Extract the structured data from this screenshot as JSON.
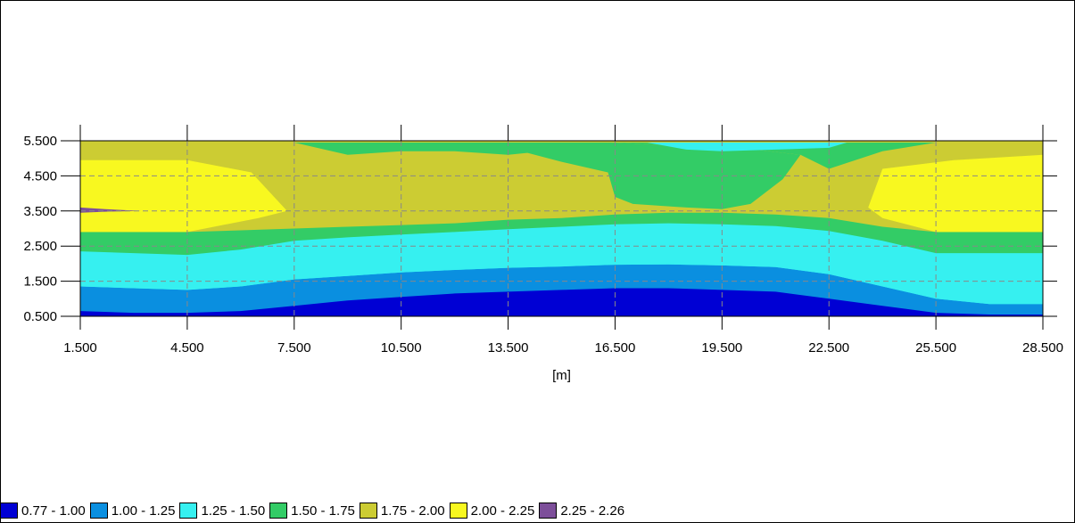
{
  "chart_data": {
    "type": "heatmap",
    "xlabel": "[m]",
    "ylabel": "",
    "xlim": [
      1.5,
      28.5
    ],
    "ylim": [
      0.5,
      5.5
    ],
    "x_ticks": [
      "1.500",
      "4.500",
      "7.500",
      "10.500",
      "13.500",
      "16.500",
      "19.500",
      "22.500",
      "25.500",
      "28.500"
    ],
    "y_ticks": [
      "0.500",
      "1.500",
      "2.500",
      "3.500",
      "4.500",
      "5.500"
    ],
    "grid": true,
    "legend_placement": "bottom",
    "contour_x": [
      1.5,
      3,
      4.5,
      6,
      7.5,
      9,
      10.5,
      12,
      13.5,
      15,
      16.5,
      18,
      19.5,
      21,
      22.5,
      24,
      25.5,
      27,
      28.5
    ],
    "contour_boundaries": [
      [
        0.65,
        0.6,
        0.6,
        0.65,
        0.8,
        0.95,
        1.05,
        1.15,
        1.2,
        1.25,
        1.3,
        1.3,
        1.25,
        1.2,
        1.0,
        0.8,
        0.6,
        0.55,
        0.55
      ],
      [
        1.35,
        1.3,
        1.25,
        1.35,
        1.55,
        1.65,
        1.75,
        1.82,
        1.88,
        1.92,
        1.97,
        1.98,
        1.95,
        1.9,
        1.7,
        1.35,
        1.0,
        0.85,
        0.85
      ],
      [
        1.85,
        1.8,
        1.75,
        1.9,
        2.2,
        2.3,
        2.4,
        2.47,
        2.53,
        2.6,
        2.66,
        2.68,
        2.65,
        2.6,
        2.4,
        2.1,
        1.75,
        1.65,
        1.65
      ],
      [
        2.35,
        2.3,
        2.25,
        2.4,
        2.65,
        2.75,
        2.83,
        2.9,
        2.98,
        3.05,
        3.12,
        3.15,
        3.12,
        3.07,
        2.93,
        2.65,
        2.3,
        2.3,
        2.3
      ]
    ],
    "green_top_x": [
      1.5,
      3,
      4.5,
      6,
      7.5,
      9,
      10.5,
      12,
      13.5,
      15,
      16.5,
      18,
      19.5,
      21,
      22.5,
      24,
      25.5,
      27,
      28.5
    ],
    "green_top_y": [
      2.9,
      2.9,
      2.9,
      2.95,
      3.0,
      3.05,
      3.1,
      3.15,
      3.25,
      3.3,
      3.4,
      3.45,
      3.45,
      3.4,
      3.3,
      3.05,
      2.9,
      2.9,
      2.9
    ],
    "yellow_left": [
      [
        1.5,
        5.45
      ],
      [
        3,
        5.45
      ],
      [
        4.5,
        5.45
      ],
      [
        6,
        5.2
      ],
      [
        7.5,
        4.95
      ],
      [
        1.5,
        4.95
      ]
    ],
    "yellow_left_inner": [
      [
        1.5,
        4.95
      ],
      [
        4.5,
        4.95
      ],
      [
        6.3,
        4.6
      ],
      [
        7.3,
        3.5
      ],
      [
        6.5,
        3.3
      ],
      [
        4.5,
        2.9
      ],
      [
        1.5,
        2.9
      ]
    ],
    "yellow_right_inner": [
      [
        28.5,
        5.1
      ],
      [
        26,
        4.95
      ],
      [
        24,
        4.7
      ],
      [
        23.6,
        3.6
      ],
      [
        24,
        3.3
      ],
      [
        25.5,
        2.9
      ],
      [
        28.5,
        2.9
      ]
    ],
    "green_center": [
      [
        16.3,
        4.6
      ],
      [
        16.5,
        3.9
      ],
      [
        17,
        3.7
      ],
      [
        18.5,
        3.6
      ],
      [
        19.5,
        3.55
      ],
      [
        20.3,
        3.7
      ],
      [
        21.2,
        4.4
      ],
      [
        21.7,
        5.1
      ],
      [
        20,
        5.3
      ],
      [
        18.5,
        5.35
      ],
      [
        16.5,
        5.45
      ],
      [
        14.5,
        5.3
      ],
      [
        13.5,
        5.3
      ],
      [
        15,
        4.9
      ],
      [
        16.3,
        4.6
      ]
    ],
    "green_top_band": [
      [
        7.5,
        5.45
      ],
      [
        12,
        5.45
      ],
      [
        24,
        5.45
      ],
      [
        25.5,
        5.45
      ],
      [
        24,
        5.2
      ],
      [
        22.5,
        4.7
      ],
      [
        21.7,
        5.1
      ],
      [
        20,
        5.3
      ],
      [
        18.5,
        5.35
      ],
      [
        16.5,
        5.45
      ],
      [
        14.5,
        5.2
      ],
      [
        13.5,
        5.1
      ],
      [
        12,
        5.2
      ],
      [
        10.5,
        5.2
      ],
      [
        9,
        5.1
      ]
    ],
    "cyan_top": [
      [
        17.4,
        5.45
      ],
      [
        23,
        5.45
      ],
      [
        22.5,
        5.3
      ],
      [
        21,
        5.25
      ],
      [
        19.5,
        5.2
      ],
      [
        18.5,
        5.25
      ]
    ],
    "purple_spot": [
      [
        1.5,
        3.6
      ],
      [
        2.2,
        3.55
      ],
      [
        3.2,
        3.5
      ],
      [
        2.2,
        3.48
      ],
      [
        1.5,
        3.45
      ]
    ],
    "legend": [
      {
        "label": "0.77 - 1.00",
        "color": "#0000d4"
      },
      {
        "label": "1.00 - 1.25",
        "color": "#0a8fe0"
      },
      {
        "label": "1.25 - 1.50",
        "color": "#36f0f0"
      },
      {
        "label": "1.50 - 1.75",
        "color": "#33cc66"
      },
      {
        "label": "1.75 - 2.00",
        "color": "#cccc33"
      },
      {
        "label": "2.00 - 2.25",
        "color": "#f8f820"
      },
      {
        "label": "2.25 - 2.26",
        "color": "#7d4f9a"
      }
    ]
  }
}
